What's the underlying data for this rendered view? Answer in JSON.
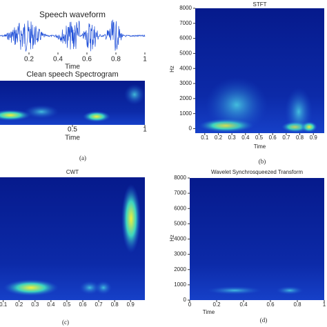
{
  "panels": [
    {
      "title": "Speech waveform",
      "xlabel": "Time",
      "xlim": [
        0,
        1
      ],
      "xticks": [
        0.2,
        0.4,
        0.6,
        0.8,
        1
      ]
    },
    {
      "title": "Clean speech Spectrogram",
      "xlabel": "Time",
      "xlim": [
        0,
        1
      ],
      "xticks": [
        0.5,
        1
      ]
    },
    {
      "title": "STFT",
      "xlabel": "Time",
      "ylabel": "Hz",
      "xlim": [
        0.03,
        0.98
      ],
      "ylim": [
        -300,
        8000
      ],
      "xticks": [
        0.1,
        0.2,
        0.3,
        0.4,
        0.5,
        0.6,
        0.7,
        0.8,
        0.9
      ],
      "yticks": [
        0,
        1000,
        2000,
        3000,
        4000,
        5000,
        6000,
        7000,
        8000
      ]
    },
    {
      "title": "CWT",
      "xlim": [
        0.08,
        0.99
      ],
      "xticks": [
        0.1,
        0.2,
        0.3,
        0.4,
        0.5,
        0.6,
        0.7,
        0.8,
        0.9
      ]
    },
    {
      "title": "Wavelet Synchrosqueezed Transform",
      "xlabel": "Time",
      "ylabel": "Hz",
      "xlim": [
        0,
        1
      ],
      "ylim": [
        0,
        8000
      ],
      "xticks": [
        0,
        0.2,
        0.4,
        0.6,
        0.8,
        1
      ],
      "yticks": [
        0,
        1000,
        2000,
        3000,
        4000,
        5000,
        6000,
        7000,
        8000
      ]
    }
  ],
  "captions": [
    "(a)",
    "(b)",
    "(c)",
    "(d)"
  ]
}
